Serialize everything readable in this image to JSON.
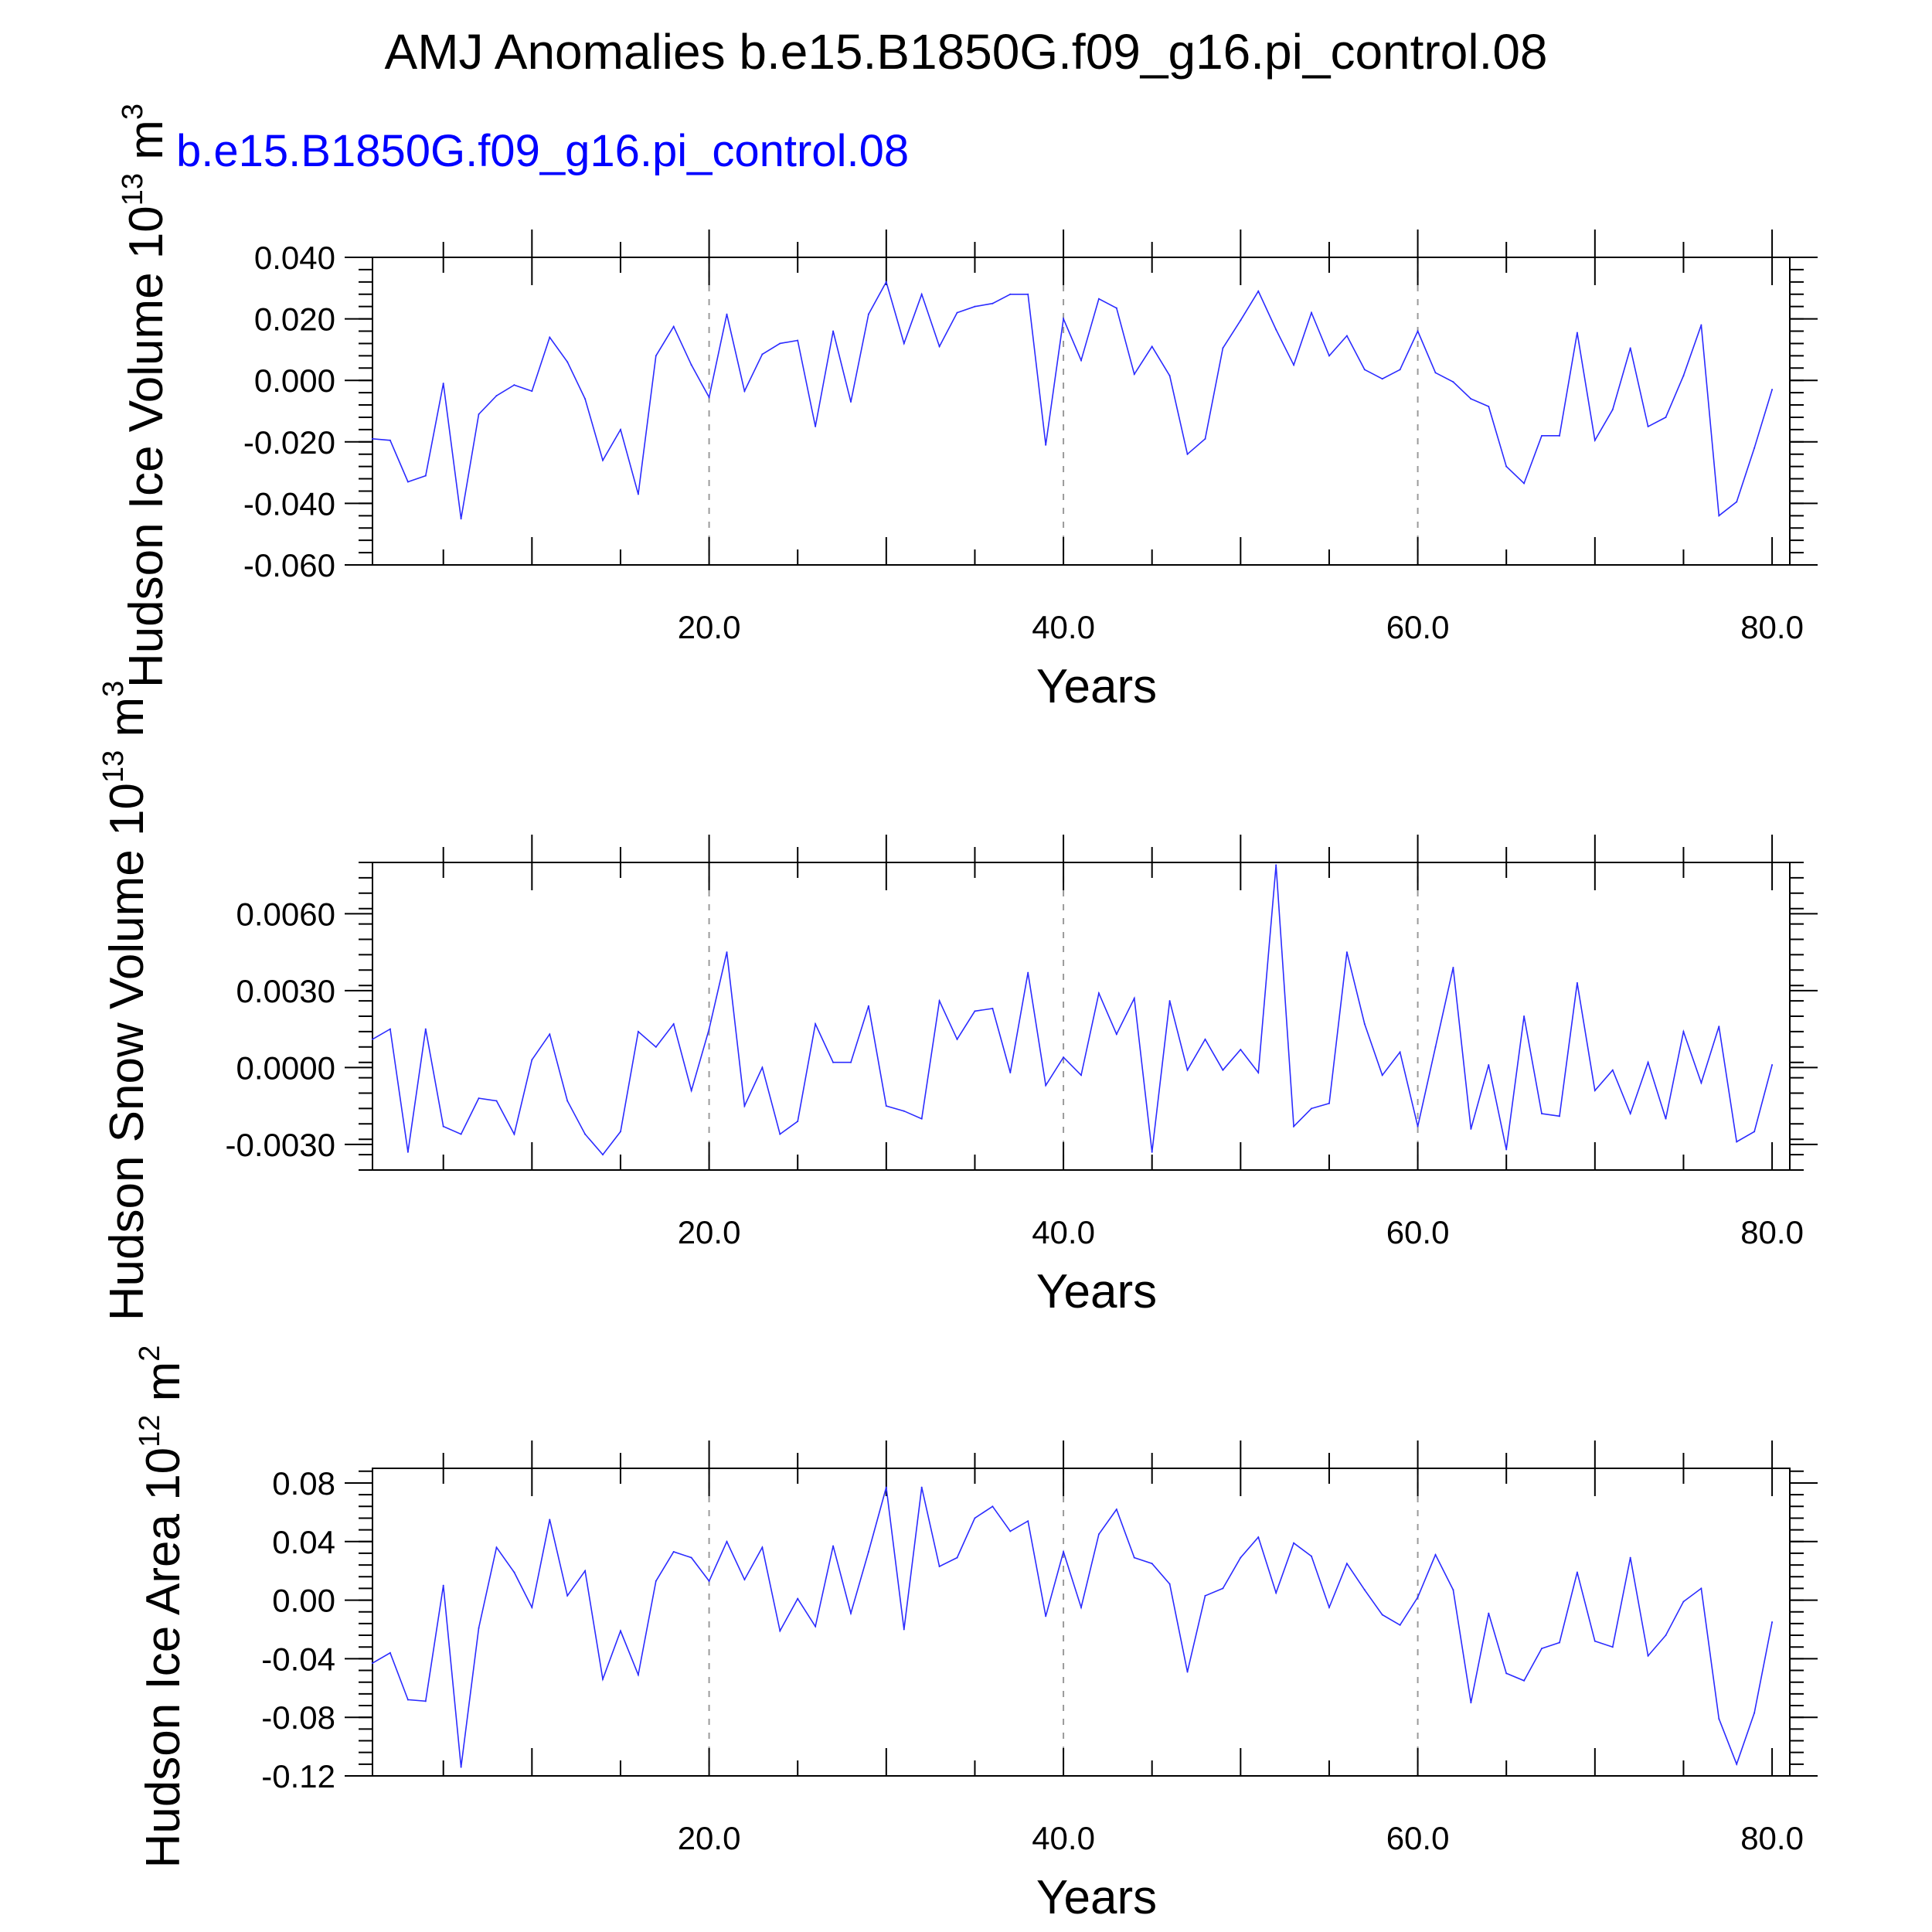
{
  "title": "AMJ Anomalies b.e15.B1850G.f09_g16.pi_control.08",
  "case_label": "b.e15.B1850G.f09_g16.pi_control.08",
  "colors": {
    "line": "#2b2bff",
    "frame": "#000000",
    "grid": "#9a9a9a",
    "case_label": "#0000ff"
  },
  "chart_data": [
    {
      "type": "line",
      "xlabel": "Years",
      "ylabel": "Hudson Ice Volume 10",
      "ylabel_exp": "13",
      "ylabel_unit": "m",
      "ylabel_unit_exp": "3",
      "xlim": [
        1,
        81
      ],
      "ylim": [
        -0.06,
        0.04
      ],
      "x_ticks": [
        20,
        40,
        60,
        80
      ],
      "x_tick_labels": [
        "20.0",
        "40.0",
        "60.0",
        "80.0"
      ],
      "y_ticks": [
        -0.06,
        -0.04,
        -0.02,
        0.0,
        0.02,
        0.04
      ],
      "y_tick_labels": [
        "-0.060",
        "-0.040",
        "-0.020",
        "0.000",
        "0.020",
        "0.040"
      ],
      "grid": "dashed vertical lines at 20, 40, 60",
      "x": [
        1,
        2,
        3,
        4,
        5,
        6,
        7,
        8,
        9,
        10,
        11,
        12,
        13,
        14,
        15,
        16,
        17,
        18,
        19,
        20,
        21,
        22,
        23,
        24,
        25,
        26,
        27,
        28,
        29,
        30,
        31,
        32,
        33,
        34,
        35,
        36,
        37,
        38,
        39,
        40,
        41,
        42,
        43,
        44,
        45,
        46,
        47,
        48,
        49,
        50,
        51,
        52,
        53,
        54,
        55,
        56,
        57,
        58,
        59,
        60,
        61,
        62,
        63,
        64,
        65,
        66,
        67,
        68,
        69,
        70,
        71,
        72,
        73,
        74,
        75,
        76,
        77,
        78,
        79,
        80
      ],
      "series": [
        {
          "values": [
            -0.019,
            -0.0195,
            -0.033,
            -0.031,
            -0.001,
            -0.045,
            -0.011,
            -0.005,
            -0.0015,
            -0.0035,
            0.014,
            0.006,
            -0.006,
            -0.026,
            -0.016,
            -0.037,
            0.008,
            0.0175,
            0.005,
            -0.0055,
            0.0215,
            -0.0035,
            0.0085,
            0.012,
            0.013,
            -0.015,
            0.016,
            -0.007,
            0.0215,
            0.032,
            0.012,
            0.028,
            0.011,
            0.022,
            0.024,
            0.025,
            0.028,
            0.028,
            -0.021,
            0.02,
            0.0065,
            0.0265,
            0.0235,
            0.002,
            0.011,
            0.0015,
            -0.024,
            -0.019,
            0.0105,
            0.0195,
            0.029,
            0.0165,
            0.005,
            0.022,
            0.008,
            0.0145,
            0.0035,
            0.0005,
            0.0035,
            0.016,
            0.0025,
            -0.0005,
            -0.006,
            -0.0085,
            -0.028,
            -0.0335,
            -0.018,
            -0.018,
            0.0155,
            -0.0195,
            -0.0095,
            0.0105,
            -0.015,
            -0.012,
            0.0015,
            0.018,
            -0.044,
            -0.0395,
            -0.022,
            -0.003
          ]
        }
      ]
    },
    {
      "type": "line",
      "xlabel": "Years",
      "ylabel": "Hudson Snow Volume 10",
      "ylabel_exp": "13",
      "ylabel_unit": "m",
      "ylabel_unit_exp": "3",
      "xlim": [
        1,
        81
      ],
      "ylim": [
        -0.004,
        0.008
      ],
      "x_ticks": [
        20,
        40,
        60,
        80
      ],
      "x_tick_labels": [
        "20.0",
        "40.0",
        "60.0",
        "80.0"
      ],
      "y_ticks": [
        -0.003,
        0.0,
        0.003,
        0.006
      ],
      "y_tick_labels": [
        "-0.0030",
        "0.0000",
        "0.0030",
        "0.0060"
      ],
      "grid": "dashed vertical lines at 20, 40, 60",
      "x": [
        1,
        2,
        3,
        4,
        5,
        6,
        7,
        8,
        9,
        10,
        11,
        12,
        13,
        14,
        15,
        16,
        17,
        18,
        19,
        20,
        21,
        22,
        23,
        24,
        25,
        26,
        27,
        28,
        29,
        30,
        31,
        32,
        33,
        34,
        35,
        36,
        37,
        38,
        39,
        40,
        41,
        42,
        43,
        44,
        45,
        46,
        47,
        48,
        49,
        50,
        51,
        52,
        53,
        54,
        55,
        56,
        57,
        58,
        59,
        60,
        61,
        62,
        63,
        64,
        65,
        66,
        67,
        68,
        69,
        70,
        71,
        72,
        73,
        74,
        75,
        76,
        77,
        78,
        79,
        80
      ],
      "series": [
        {
          "values": [
            0.0011,
            0.0015,
            -0.0033,
            0.0015,
            -0.0023,
            -0.0026,
            -0.0012,
            -0.0013,
            -0.0026,
            0.0003,
            0.0013,
            -0.0013,
            -0.0026,
            -0.0034,
            -0.0025,
            0.0014,
            0.0008,
            0.0017,
            -0.0009,
            0.0015,
            0.0045,
            -0.0015,
            0.0,
            -0.0026,
            -0.0021,
            0.0017,
            0.0002,
            0.0002,
            0.0024,
            -0.0015,
            -0.0017,
            -0.002,
            0.0026,
            0.0011,
            0.0022,
            0.0023,
            -0.0002,
            0.0037,
            -0.0007,
            0.0004,
            -0.0003,
            0.0029,
            0.0013,
            0.0027,
            -0.0033,
            0.0026,
            -0.0001,
            0.0011,
            -0.0001,
            0.0007,
            -0.0002,
            0.0079,
            -0.0023,
            -0.0016,
            -0.0014,
            0.0045,
            0.0017,
            -0.0003,
            0.0006,
            -0.0023,
            0.0008,
            0.0039,
            -0.0024,
            0.0001,
            -0.0032,
            0.002,
            -0.0018,
            -0.0019,
            0.0033,
            -0.0009,
            -0.0001,
            -0.0018,
            0.0002,
            -0.002,
            0.0014,
            -0.0006,
            0.0016,
            -0.0029,
            -0.0025,
            0.0001
          ]
        }
      ]
    },
    {
      "type": "line",
      "xlabel": "Years",
      "ylabel": "Hudson Ice Area 10",
      "ylabel_exp": "12",
      "ylabel_unit": "m",
      "ylabel_unit_exp": "2",
      "xlim": [
        1,
        81
      ],
      "ylim": [
        -0.12,
        0.09
      ],
      "x_ticks": [
        20,
        40,
        60,
        80
      ],
      "x_tick_labels": [
        "20.0",
        "40.0",
        "60.0",
        "80.0"
      ],
      "y_ticks": [
        -0.12,
        -0.08,
        -0.04,
        0.0,
        0.04,
        0.08
      ],
      "y_tick_labels": [
        "-0.12",
        "-0.08",
        "-0.04",
        "0.00",
        "0.04",
        "0.08"
      ],
      "grid": "dashed vertical lines at 20, 40, 60",
      "x": [
        1,
        2,
        3,
        4,
        5,
        6,
        7,
        8,
        9,
        10,
        11,
        12,
        13,
        14,
        15,
        16,
        17,
        18,
        19,
        20,
        21,
        22,
        23,
        24,
        25,
        26,
        27,
        28,
        29,
        30,
        31,
        32,
        33,
        34,
        35,
        36,
        37,
        38,
        39,
        40,
        41,
        42,
        43,
        44,
        45,
        46,
        47,
        48,
        49,
        50,
        51,
        52,
        53,
        54,
        55,
        56,
        57,
        58,
        59,
        60,
        61,
        62,
        63,
        64,
        65,
        66,
        67,
        68,
        69,
        70,
        71,
        72,
        73,
        74,
        75,
        76,
        77,
        78,
        79,
        80
      ],
      "series": [
        {
          "values": [
            -0.043,
            -0.036,
            -0.068,
            -0.069,
            0.01,
            -0.114,
            -0.019,
            0.036,
            0.019,
            -0.005,
            0.055,
            0.003,
            0.02,
            -0.054,
            -0.021,
            -0.051,
            0.013,
            0.033,
            0.029,
            0.013,
            0.04,
            0.014,
            0.036,
            -0.021,
            0.001,
            -0.018,
            0.037,
            -0.009,
            0.033,
            0.077,
            -0.02,
            0.077,
            0.023,
            0.029,
            0.056,
            0.064,
            0.047,
            0.054,
            -0.011,
            0.033,
            -0.005,
            0.045,
            0.062,
            0.029,
            0.025,
            0.011,
            -0.049,
            0.003,
            0.008,
            0.029,
            0.043,
            0.005,
            0.039,
            0.03,
            -0.005,
            0.025,
            0.007,
            -0.01,
            -0.017,
            0.002,
            0.031,
            0.007,
            -0.07,
            -0.009,
            -0.05,
            -0.055,
            -0.033,
            -0.029,
            0.019,
            -0.028,
            -0.032,
            0.029,
            -0.038,
            -0.024,
            -0.001,
            0.008,
            -0.081,
            -0.112,
            -0.077,
            -0.015
          ]
        }
      ]
    }
  ]
}
